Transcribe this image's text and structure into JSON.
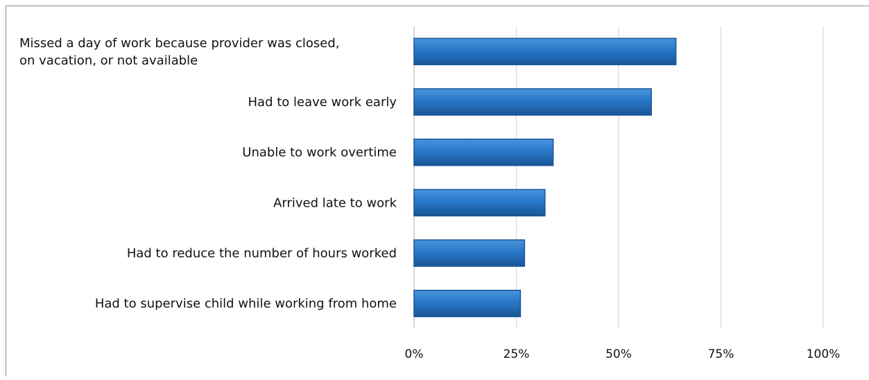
{
  "colors": {
    "bar": "#2878c8",
    "bar_dark": "#1a5596",
    "bar_light": "#4a94dd",
    "grid": "#d9d9d9",
    "axis": "#bfbfbf",
    "frame": "#8c8c8c"
  },
  "chart_data": {
    "type": "bar",
    "orientation": "horizontal",
    "categories": [
      [
        "Missed a day of work because provider was closed,",
        "on vacation, or not available"
      ],
      [
        "Had to leave work early"
      ],
      [
        "Unable to work overtime"
      ],
      [
        "Arrived late to work"
      ],
      [
        "Had to reduce the number of hours worked"
      ],
      [
        "Had to supervise child while working from home"
      ]
    ],
    "values": [
      64,
      58,
      34,
      32,
      27,
      26
    ],
    "value_unit": "percent",
    "xlim": [
      0,
      100
    ],
    "xticks": [
      0,
      25,
      50,
      75,
      100
    ],
    "xtick_labels": [
      "0%",
      "25%",
      "50%",
      "75%",
      "100%"
    ],
    "grid": true,
    "legend": "none"
  }
}
